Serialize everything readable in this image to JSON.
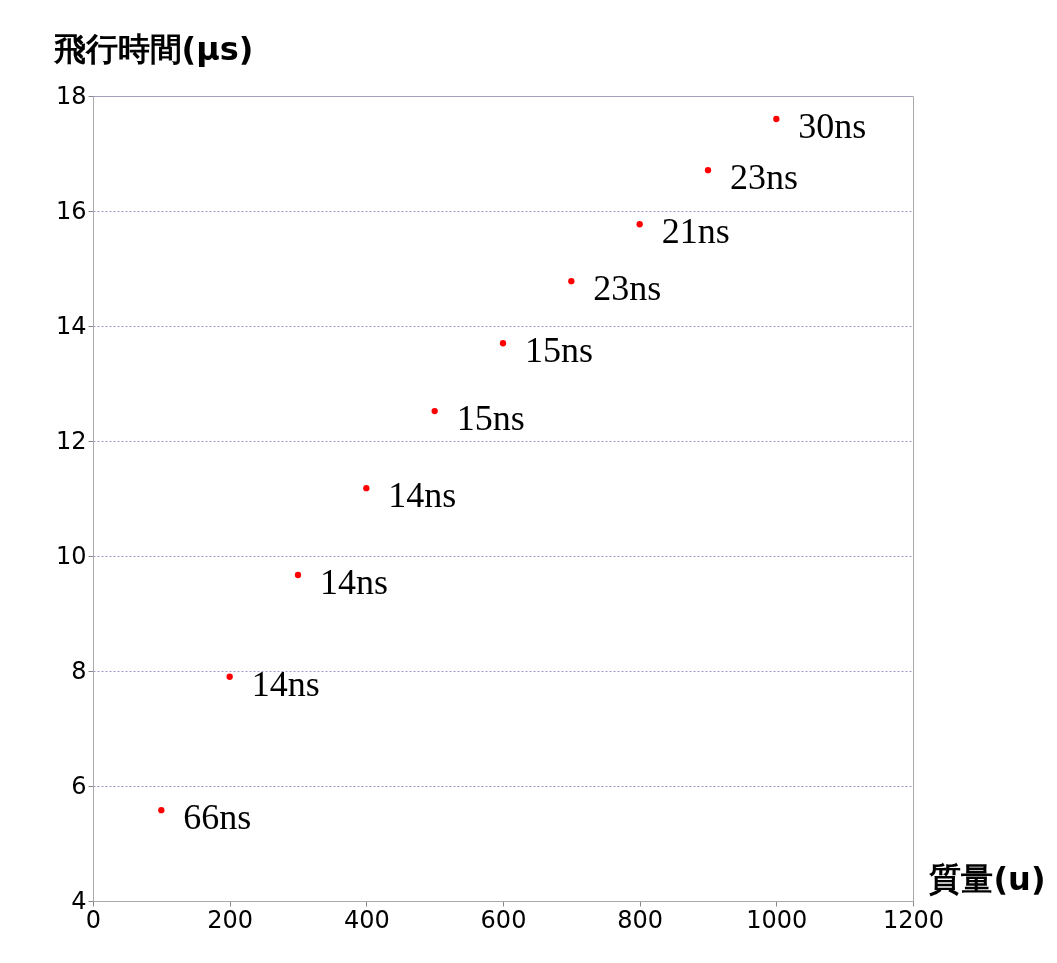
{
  "chart_data": {
    "type": "scatter",
    "xlabel": "質量(u)",
    "ylabel": "飛行時間(μs)",
    "x": [
      100,
      200,
      300,
      400,
      500,
      600,
      700,
      800,
      900,
      1000
    ],
    "values": [
      5.58,
      7.9,
      9.67,
      11.18,
      12.52,
      13.7,
      14.78,
      15.77,
      16.71,
      17.6
    ],
    "color": "#ff0000",
    "marker": "circle",
    "grid": "y",
    "xlim": [
      0,
      1200
    ],
    "xticks": [
      0,
      200,
      400,
      600,
      800,
      1000,
      1200
    ],
    "ylim": [
      4,
      18
    ],
    "yticks": [
      4,
      6,
      8,
      10,
      12,
      14,
      16,
      18
    ],
    "annotations": [
      {
        "text": "66ns",
        "x": 100,
        "y": 5.58
      },
      {
        "text": "14ns",
        "x": 200,
        "y": 7.9
      },
      {
        "text": "14ns",
        "x": 300,
        "y": 9.67
      },
      {
        "text": "14ns",
        "x": 400,
        "y": 11.18
      },
      {
        "text": "15ns",
        "x": 500,
        "y": 12.52
      },
      {
        "text": "15ns",
        "x": 600,
        "y": 13.7
      },
      {
        "text": "23ns",
        "x": 700,
        "y": 14.78
      },
      {
        "text": "21ns",
        "x": 800,
        "y": 15.77
      },
      {
        "text": "23ns",
        "x": 900,
        "y": 16.71
      },
      {
        "text": "30ns",
        "x": 1000,
        "y": 17.6
      }
    ]
  }
}
